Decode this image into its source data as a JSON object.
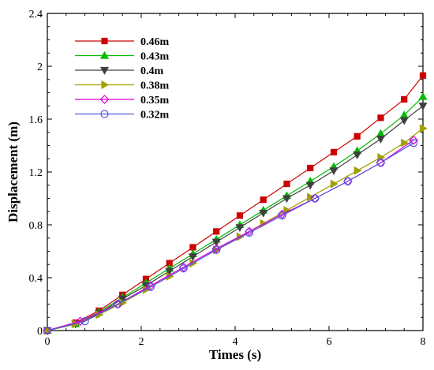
{
  "chart_data": {
    "type": "line",
    "xlabel": "Times (s)",
    "ylabel": "Displacement (m)",
    "xlim": [
      0,
      8
    ],
    "ylim": [
      0,
      2.4
    ],
    "xticks": [
      0,
      2,
      4,
      6,
      8
    ],
    "yticks": [
      0,
      0.4,
      0.8,
      1.2,
      1.6,
      2,
      2.4
    ],
    "x_tick_labels": [
      "0",
      "2",
      "4",
      "6",
      "8"
    ],
    "y_tick_labels": [
      "0",
      "0.4",
      "0.8",
      "1.2",
      "1.6",
      "2",
      "2.4"
    ],
    "grid": false,
    "legend_position": "top-left",
    "series": [
      {
        "name": "0.46m",
        "color": "#cc0000",
        "marker": "square",
        "marker_filled": true,
        "x": [
          0,
          0.6,
          1.1,
          1.6,
          2.1,
          2.6,
          3.1,
          3.6,
          4.1,
          4.6,
          5.1,
          5.6,
          6.1,
          6.6,
          7.1,
          7.6,
          8.0
        ],
        "y": [
          0,
          0.06,
          0.15,
          0.27,
          0.39,
          0.51,
          0.63,
          0.75,
          0.87,
          0.99,
          1.11,
          1.23,
          1.35,
          1.47,
          1.61,
          1.75,
          1.93
        ]
      },
      {
        "name": "0.43m",
        "color": "#00bb00",
        "marker": "triangle-up",
        "marker_filled": true,
        "x": [
          0,
          0.6,
          1.1,
          1.6,
          2.1,
          2.6,
          3.1,
          3.6,
          4.1,
          4.6,
          5.1,
          5.6,
          6.1,
          6.6,
          7.1,
          7.6,
          8.0
        ],
        "y": [
          0,
          0.05,
          0.14,
          0.25,
          0.36,
          0.47,
          0.58,
          0.69,
          0.8,
          0.91,
          1.02,
          1.13,
          1.24,
          1.36,
          1.49,
          1.63,
          1.77
        ]
      },
      {
        "name": "0.4m",
        "color": "#404040",
        "marker": "triangle-down",
        "marker_filled": true,
        "x": [
          0,
          0.6,
          1.1,
          1.6,
          2.1,
          2.6,
          3.1,
          3.6,
          4.1,
          4.6,
          5.1,
          5.6,
          6.1,
          6.6,
          7.1,
          7.6,
          8.0
        ],
        "y": [
          0,
          0.05,
          0.13,
          0.24,
          0.34,
          0.45,
          0.56,
          0.67,
          0.78,
          0.89,
          1.0,
          1.1,
          1.21,
          1.33,
          1.45,
          1.59,
          1.7
        ]
      },
      {
        "name": "0.38m",
        "color": "#a0a000",
        "marker": "triangle-right",
        "marker_filled": true,
        "x": [
          0,
          0.6,
          1.1,
          1.6,
          2.1,
          2.6,
          3.1,
          3.6,
          4.1,
          4.6,
          5.1,
          5.6,
          6.1,
          6.6,
          7.1,
          7.6,
          8.0
        ],
        "y": [
          0,
          0.05,
          0.12,
          0.21,
          0.31,
          0.41,
          0.51,
          0.61,
          0.71,
          0.81,
          0.91,
          1.01,
          1.11,
          1.21,
          1.31,
          1.42,
          1.53
        ]
      },
      {
        "name": "0.35m",
        "color": "#dd00dd",
        "marker": "diamond",
        "marker_filled": false,
        "x": [
          0,
          0.7,
          1.5,
          2.2,
          2.9,
          3.6,
          4.3,
          5.0,
          5.7,
          6.4,
          7.1,
          7.8
        ],
        "y": [
          0,
          0.07,
          0.2,
          0.34,
          0.48,
          0.62,
          0.75,
          0.88,
          1.0,
          1.13,
          1.27,
          1.44
        ]
      },
      {
        "name": "0.32m",
        "color": "#5555dd",
        "marker": "circle",
        "marker_filled": false,
        "x": [
          0,
          0.8,
          1.5,
          2.2,
          2.9,
          3.6,
          4.3,
          5.0,
          5.7,
          6.4,
          7.1,
          7.8
        ],
        "y": [
          0,
          0.07,
          0.2,
          0.33,
          0.47,
          0.61,
          0.74,
          0.87,
          1.0,
          1.13,
          1.27,
          1.42
        ]
      }
    ]
  }
}
